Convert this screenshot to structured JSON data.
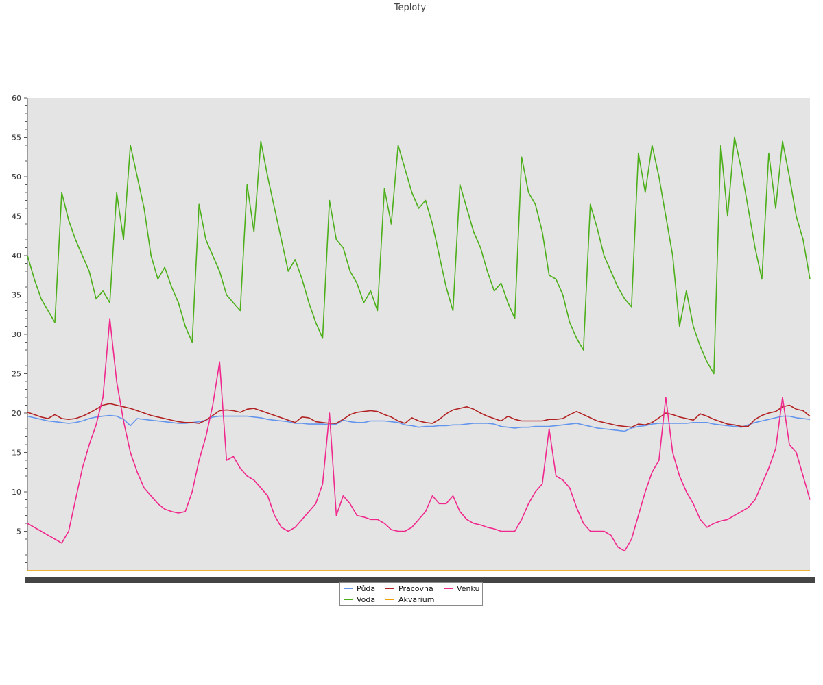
{
  "chart_data": {
    "type": "line",
    "title": "Teploty",
    "xlabel": "",
    "ylabel": "",
    "ylim": [
      0,
      60
    ],
    "y_ticks": [
      5,
      10,
      15,
      20,
      25,
      30,
      35,
      40,
      45,
      50,
      55,
      60
    ],
    "x": [
      0,
      1,
      2,
      3,
      4,
      5,
      6,
      7,
      8,
      9,
      10,
      11,
      12,
      13,
      14,
      15,
      16,
      17,
      18,
      19,
      20,
      21,
      22,
      23,
      24,
      25,
      26,
      27,
      28,
      29,
      30,
      31,
      32,
      33,
      34,
      35,
      36,
      37,
      38,
      39,
      40,
      41,
      42,
      43,
      44,
      45,
      46,
      47,
      48,
      49,
      50,
      51,
      52,
      53,
      54,
      55,
      56,
      57,
      58,
      59,
      60,
      61,
      62,
      63,
      64,
      65,
      66,
      67,
      68,
      69,
      70,
      71,
      72,
      73,
      74,
      75,
      76,
      77,
      78,
      79,
      80,
      81,
      82,
      83,
      84,
      85,
      86,
      87,
      88,
      89,
      90,
      91,
      92,
      93,
      94,
      95,
      96,
      97,
      98,
      99,
      100,
      101,
      102,
      103,
      104,
      105,
      106,
      107,
      108,
      109,
      110,
      111,
      112,
      113,
      114
    ],
    "grid": false,
    "background": "#e4e4e4",
    "legend_position": "bottom-center",
    "series": [
      {
        "name": "Půda",
        "color": "#6495ed",
        "values": [
          19.6,
          19.4,
          19.2,
          19.0,
          18.9,
          18.8,
          18.7,
          18.8,
          19.0,
          19.3,
          19.5,
          19.6,
          19.7,
          19.6,
          19.2,
          18.4,
          19.3,
          19.2,
          19.1,
          19.0,
          18.9,
          18.8,
          18.7,
          18.7,
          18.8,
          18.9,
          19.1,
          19.5,
          19.6,
          19.6,
          19.6,
          19.6,
          19.6,
          19.5,
          19.4,
          19.2,
          19.1,
          19.0,
          18.9,
          18.7,
          18.7,
          18.6,
          18.6,
          18.6,
          18.5,
          18.6,
          19.1,
          18.9,
          18.8,
          18.8,
          19.0,
          19.0,
          19.0,
          18.9,
          18.8,
          18.5,
          18.4,
          18.2,
          18.3,
          18.3,
          18.4,
          18.4,
          18.5,
          18.5,
          18.6,
          18.7,
          18.7,
          18.7,
          18.6,
          18.3,
          18.2,
          18.1,
          18.2,
          18.2,
          18.3,
          18.3,
          18.3,
          18.4,
          18.5,
          18.6,
          18.7,
          18.5,
          18.3,
          18.1,
          18.0,
          17.9,
          17.8,
          17.7,
          18.1,
          18.3,
          18.4,
          18.6,
          18.7,
          18.7,
          18.7,
          18.7,
          18.7,
          18.8,
          18.8,
          18.8,
          18.6,
          18.5,
          18.4,
          18.3,
          18.2,
          18.5,
          18.8,
          19.0,
          19.2,
          19.4,
          19.6,
          19.6,
          19.4,
          19.3,
          19.2
        ]
      },
      {
        "name": "Voda",
        "color": "#4caf1a",
        "values": [
          40.0,
          37.0,
          34.5,
          33.0,
          31.5,
          48.0,
          44.5,
          42.0,
          40.0,
          38.0,
          34.5,
          35.5,
          34.0,
          48.0,
          42.0,
          54.0,
          50.0,
          46.0,
          40.0,
          37.0,
          38.5,
          36.0,
          34.0,
          31.0,
          29.0,
          46.5,
          42.0,
          40.0,
          38.0,
          35.0,
          34.0,
          33.0,
          49.0,
          43.0,
          54.5,
          50.0,
          46.0,
          42.0,
          38.0,
          39.5,
          37.0,
          34.0,
          31.5,
          29.5,
          47.0,
          42.0,
          41.0,
          38.0,
          36.5,
          34.0,
          35.5,
          33.0,
          48.5,
          44.0,
          54.0,
          51.0,
          48.0,
          46.0,
          47.0,
          44.0,
          40.0,
          36.0,
          33.0,
          49.0,
          46.0,
          43.0,
          41.0,
          38.0,
          35.5,
          36.5,
          34.0,
          32.0,
          52.5,
          48.0,
          46.5,
          43.0,
          37.5,
          37.0,
          35.0,
          31.5,
          29.5,
          28.0,
          46.5,
          43.5,
          40.0,
          38.0,
          36.0,
          34.5,
          33.5,
          53.0,
          48.0,
          54.0,
          50.0,
          45.0,
          40.0,
          31.0,
          35.5,
          31.0,
          28.5,
          26.5,
          25.0,
          54.0,
          45.0,
          55.0,
          51.0,
          46.0,
          41.0,
          37.0,
          53.0,
          46.0,
          54.5,
          50.0,
          45.0,
          42.0,
          37.0
        ]
      },
      {
        "name": "Pracovna",
        "color": "#b22222",
        "values": [
          20.1,
          19.8,
          19.5,
          19.3,
          19.8,
          19.3,
          19.2,
          19.3,
          19.6,
          20.0,
          20.5,
          21.0,
          21.2,
          21.0,
          20.8,
          20.6,
          20.3,
          20.0,
          19.7,
          19.5,
          19.3,
          19.1,
          18.9,
          18.8,
          18.8,
          18.7,
          19.1,
          19.7,
          20.3,
          20.4,
          20.3,
          20.1,
          20.5,
          20.6,
          20.3,
          20.0,
          19.7,
          19.4,
          19.1,
          18.8,
          19.5,
          19.4,
          18.9,
          18.8,
          18.7,
          18.7,
          19.2,
          19.8,
          20.1,
          20.2,
          20.3,
          20.2,
          19.8,
          19.5,
          19.0,
          18.7,
          19.4,
          19.0,
          18.8,
          18.7,
          19.2,
          19.9,
          20.4,
          20.6,
          20.8,
          20.5,
          20.0,
          19.6,
          19.3,
          19.0,
          19.6,
          19.2,
          19.0,
          19.0,
          19.0,
          19.0,
          19.2,
          19.2,
          19.3,
          19.8,
          20.2,
          19.8,
          19.4,
          19.0,
          18.8,
          18.6,
          18.4,
          18.3,
          18.2,
          18.6,
          18.5,
          18.8,
          19.4,
          20.0,
          19.8,
          19.5,
          19.3,
          19.1,
          19.9,
          19.6,
          19.2,
          18.9,
          18.6,
          18.5,
          18.3,
          18.3,
          19.2,
          19.7,
          20.0,
          20.2,
          20.8,
          21.0,
          20.5,
          20.3,
          19.6
        ]
      },
      {
        "name": "Akvarium",
        "color": "#f0a000",
        "values": [
          0,
          0,
          0,
          0,
          0,
          0,
          0,
          0,
          0,
          0,
          0,
          0,
          0,
          0,
          0,
          0,
          0,
          0,
          0,
          0,
          0,
          0,
          0,
          0,
          0,
          0,
          0,
          0,
          0,
          0,
          0,
          0,
          0,
          0,
          0,
          0,
          0,
          0,
          0,
          0,
          0,
          0,
          0,
          0,
          0,
          0,
          0,
          0,
          0,
          0,
          0,
          0,
          0,
          0,
          0,
          0,
          0,
          0,
          0,
          0,
          0,
          0,
          0,
          0,
          0,
          0,
          0,
          0,
          0,
          0,
          0,
          0,
          0,
          0,
          0,
          0,
          0,
          0,
          0,
          0,
          0,
          0,
          0,
          0,
          0,
          0,
          0,
          0,
          0,
          0,
          0,
          0,
          0,
          0,
          0,
          0,
          0,
          0,
          0,
          0,
          0,
          0,
          0,
          0,
          0,
          0,
          0,
          0,
          0,
          0,
          0,
          0,
          0,
          0,
          0
        ]
      },
      {
        "name": "Venku",
        "color": "#f0288c",
        "values": [
          6.0,
          5.5,
          5.0,
          4.5,
          4.0,
          3.5,
          5.0,
          9.0,
          13.0,
          16.0,
          18.5,
          22.0,
          32.0,
          24.0,
          19.0,
          15.0,
          12.5,
          10.5,
          9.5,
          8.5,
          7.8,
          7.5,
          7.3,
          7.5,
          10.0,
          14.0,
          17.0,
          21.0,
          26.5,
          14.0,
          14.5,
          13.0,
          12.0,
          11.5,
          10.5,
          9.5,
          7.0,
          5.5,
          5.0,
          5.5,
          6.5,
          7.5,
          8.5,
          11.0,
          20.0,
          7.0,
          9.5,
          8.5,
          7.0,
          6.8,
          6.5,
          6.5,
          6.0,
          5.2,
          5.0,
          5.0,
          5.5,
          6.5,
          7.5,
          9.5,
          8.5,
          8.5,
          9.5,
          7.5,
          6.5,
          6.0,
          5.8,
          5.5,
          5.3,
          5.0,
          5.0,
          5.0,
          6.5,
          8.5,
          10.0,
          11.0,
          18.0,
          12.0,
          11.5,
          10.5,
          8.0,
          6.0,
          5.0,
          5.0,
          5.0,
          4.5,
          3.0,
          2.5,
          4.0,
          7.0,
          10.0,
          12.5,
          14.0,
          22.0,
          15.0,
          12.0,
          10.0,
          8.5,
          6.5,
          5.5,
          6.0,
          6.3,
          6.5,
          7.0,
          7.5,
          8.0,
          9.0,
          11.0,
          13.0,
          15.5,
          22.0,
          16.0,
          15.0,
          12.0,
          9.0
        ]
      }
    ]
  }
}
